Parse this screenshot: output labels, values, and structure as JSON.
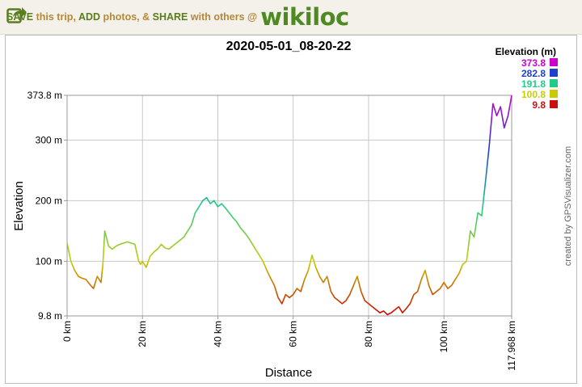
{
  "banner": {
    "t1": "SAVE",
    "t2": "this trip,",
    "t3": "ADD",
    "t4": "photos, &",
    "t5": "SHARE",
    "t6": "with others @",
    "brand": "wikiloc"
  },
  "credit": "created by GPSVisualizer.com",
  "colors": {
    "brand_green": "#4d8a1f",
    "grid": "#c8c8c8"
  },
  "chart_data": {
    "type": "line",
    "title": "2020-05-01_08-20-22",
    "xlabel": "Distance",
    "ylabel": "Elevation",
    "x_unit": "km",
    "y_unit": "m",
    "xlim": [
      0,
      117.968
    ],
    "ylim": [
      9.8,
      373.8
    ],
    "x_ticks": [
      {
        "value": 0,
        "label": "0 km"
      },
      {
        "value": 20,
        "label": "20 km"
      },
      {
        "value": 40,
        "label": "40 km"
      },
      {
        "value": 60,
        "label": "60 km"
      },
      {
        "value": 80,
        "label": "80 km"
      },
      {
        "value": 100,
        "label": "100 km"
      },
      {
        "value": 117.968,
        "label": "117.968 km"
      }
    ],
    "y_ticks": [
      {
        "value": 9.8,
        "label": "9.8 m"
      },
      {
        "value": 100,
        "label": "100 m"
      },
      {
        "value": 200,
        "label": "200 m"
      },
      {
        "value": 300,
        "label": "300 m"
      },
      {
        "value": 373.8,
        "label": "373.8 m"
      }
    ],
    "grid": true,
    "legend": {
      "title": "Elevation (m)",
      "placement": "top-right",
      "entries": [
        {
          "label": "373.8",
          "color": "#cc00cc"
        },
        {
          "label": "282.8",
          "color": "#1f3fd0"
        },
        {
          "label": "191.8",
          "color": "#22cc88"
        },
        {
          "label": "100.8",
          "color": "#c8cc00"
        },
        {
          "label": "9.8",
          "color": "#cc1010"
        }
      ]
    },
    "series": [
      {
        "x": [
          0,
          1,
          2,
          3,
          4,
          5,
          6,
          7,
          8,
          9,
          9.5,
          10,
          11,
          12,
          13,
          14,
          15,
          16,
          17,
          18,
          19,
          19.5,
          20,
          21,
          22,
          23,
          24,
          25,
          26,
          27,
          28,
          29,
          30,
          31,
          32,
          33,
          34,
          35,
          36,
          37,
          38,
          39,
          40,
          41,
          42,
          43,
          44,
          45,
          46,
          47,
          48,
          49,
          50,
          51,
          52,
          53,
          54,
          55,
          56,
          57,
          58,
          59,
          60,
          61,
          62,
          63,
          64,
          65,
          66,
          67,
          68,
          69,
          70,
          71,
          72,
          73,
          74,
          75,
          76,
          77,
          78,
          79,
          80,
          81,
          82,
          83,
          84,
          85,
          86,
          87,
          88,
          89,
          90,
          91,
          92,
          93,
          94,
          95,
          96,
          97,
          98,
          99,
          100,
          101,
          102,
          103,
          104,
          105,
          106,
          107,
          108,
          109,
          110,
          111,
          112,
          113,
          114,
          115,
          116,
          117,
          117.968
        ],
        "y": [
          130,
          100,
          85,
          75,
          72,
          70,
          62,
          55,
          75,
          65,
          95,
          150,
          125,
          120,
          125,
          128,
          130,
          132,
          130,
          128,
          100,
          95,
          100,
          90,
          108,
          115,
          120,
          128,
          122,
          120,
          125,
          130,
          135,
          140,
          150,
          160,
          180,
          190,
          200,
          205,
          195,
          200,
          190,
          195,
          188,
          180,
          172,
          165,
          155,
          148,
          140,
          130,
          120,
          110,
          100,
          85,
          72,
          60,
          40,
          30,
          45,
          40,
          45,
          55,
          50,
          70,
          85,
          110,
          90,
          75,
          65,
          75,
          50,
          40,
          35,
          30,
          35,
          45,
          60,
          75,
          50,
          35,
          30,
          25,
          20,
          15,
          18,
          12,
          15,
          20,
          25,
          15,
          22,
          30,
          45,
          50,
          70,
          85,
          60,
          45,
          50,
          55,
          65,
          55,
          60,
          70,
          80,
          95,
          100,
          150,
          140,
          180,
          175,
          230,
          290,
          360,
          340,
          355,
          320,
          340,
          373.8
        ]
      }
    ]
  }
}
